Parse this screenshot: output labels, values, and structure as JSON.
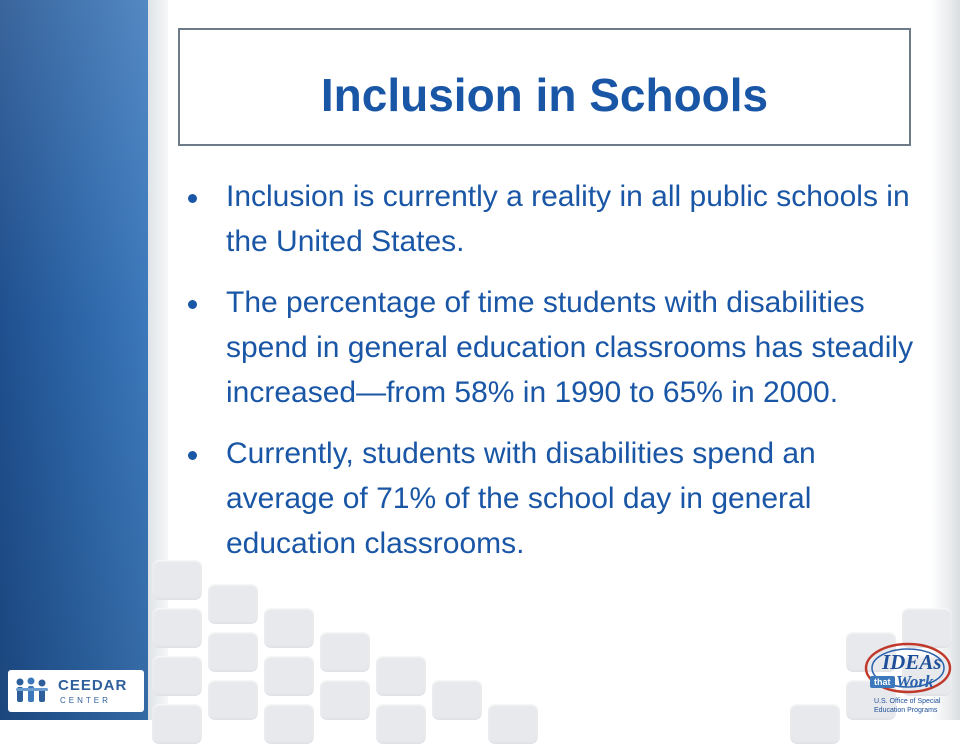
{
  "slide": {
    "title": "Inclusion in Schools",
    "bullets": [
      "Inclusion is currently a reality in all public schools in the United States.",
      "The percentage of time students with disabilities spend in general education classrooms has steadily increased—from 58% in 1990 to 65% in 2000.",
      "Currently, students with disabilities spend an average of 71% of the school day in general education classrooms."
    ],
    "text_color": "#1a56a6",
    "accent_color": "#2d66a8"
  },
  "logos": {
    "ceedar": {
      "name": "CEEDAR",
      "subtitle": "CENTER",
      "icon": "people-figures-icon"
    },
    "ideas_that_work": {
      "ideas": "IDEAs",
      "that": "that",
      "work": "Work",
      "line1": "U.S. Office of Special",
      "line2": "Education Programs"
    }
  }
}
